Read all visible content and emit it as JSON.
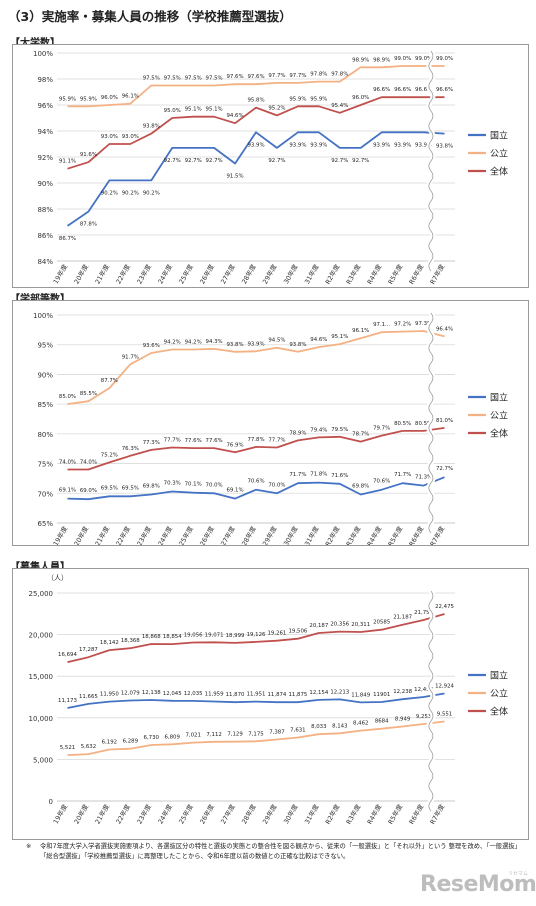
{
  "page": {
    "heading": "（3）実施率・募集人員の推移（学校推薦型選抜）",
    "footnote": "令和7年度大学入学者選抜実施要項より、各選抜区分の特性と選抜の実態との整合性を図る観点から、従来の「一般選抜」と「それ以外」という 整理を改め、「一般選抜」「総合型選抜」「学校推薦型選抜」に再整理したことから、令和6年度以前の数値との正確な比較はできない。",
    "footnote_mark": "※",
    "logo": "ReseMom",
    "logo_sub": "リセマム"
  },
  "colors": {
    "national": "#4472c4",
    "public": "#f4b183",
    "total": "#c0504d"
  },
  "chart_data": [
    {
      "type": "line",
      "section_label": "【大学数】",
      "categories": [
        "19年度",
        "20年度",
        "21年度",
        "22年度",
        "23年度",
        "24年度",
        "25年度",
        "26年度",
        "27年度",
        "28年度",
        "29年度",
        "30年度",
        "31年度",
        "R2年度",
        "R3年度",
        "R4年度",
        "R5年度",
        "R6年度",
        "R7年度"
      ],
      "ylim": [
        84,
        100
      ],
      "yticks": [
        84,
        86,
        88,
        90,
        92,
        94,
        96,
        98,
        100
      ],
      "ytick_labels": [
        "84%",
        "86%",
        "88%",
        "90%",
        "92%",
        "94%",
        "96%",
        "98%",
        "100%"
      ],
      "series": [
        {
          "name": "国立",
          "color_key": "national",
          "values": [
            86.7,
            87.8,
            90.2,
            90.2,
            90.2,
            92.7,
            92.7,
            92.7,
            91.5,
            93.9,
            92.7,
            93.9,
            93.9,
            92.7,
            92.7,
            93.9,
            93.9,
            93.9,
            93.8
          ],
          "labels": [
            "86.7%",
            "87.8%",
            "90.2%",
            "90.2%",
            "90.2%",
            "92.7%",
            "92.7%",
            "92.7%",
            "91.5%",
            "93.9%",
            "92.7%",
            "93.9%",
            "93.9%",
            "92.7%",
            "92.7%",
            "93.9%",
            "93.9%",
            "93.9%",
            "93.8%"
          ]
        },
        {
          "name": "公立",
          "color_key": "public",
          "values": [
            95.9,
            95.9,
            96.0,
            96.1,
            97.5,
            97.5,
            97.5,
            97.5,
            97.6,
            97.6,
            97.7,
            97.7,
            97.8,
            97.8,
            98.9,
            98.9,
            99.0,
            99.0,
            99.0
          ],
          "labels": [
            "95.9%",
            "95.9%",
            "96.0%",
            "96.1%",
            "97.5%",
            "97.5%",
            "97.5%",
            "97.5%",
            "97.6%",
            "97.6%",
            "97.7%",
            "97.7%",
            "97.8%",
            "97.8%",
            "98.9%",
            "98.9%",
            "99.0%",
            "99.0%",
            "99.0%"
          ]
        },
        {
          "name": "全体",
          "color_key": "total",
          "values": [
            91.1,
            91.6,
            93.0,
            93.0,
            93.8,
            95.0,
            95.1,
            95.1,
            94.6,
            95.8,
            95.2,
            95.9,
            95.9,
            95.4,
            96.0,
            96.6,
            96.6,
            96.6,
            96.6
          ],
          "labels": [
            "91.1%",
            "91.6%",
            "93.0%",
            "93.0%",
            "93.8%",
            "95.0%",
            "95.1%",
            "95.1%",
            "94.6%",
            "95.8%",
            "95.2%",
            "95.9%",
            "95.9%",
            "95.4%",
            "96.0%",
            "96.6%",
            "96.6%",
            "96.6%",
            "96.6%"
          ]
        }
      ]
    },
    {
      "type": "line",
      "section_label": "【学部等数】",
      "categories": [
        "19年度",
        "20年度",
        "21年度",
        "22年度",
        "23年度",
        "24年度",
        "25年度",
        "26年度",
        "27年度",
        "28年度",
        "29年度",
        "30年度",
        "31年度",
        "R2年度",
        "R3年度",
        "R4年度",
        "R5年度",
        "R6年度",
        "R7年度"
      ],
      "ylim": [
        65,
        100
      ],
      "yticks": [
        65,
        70,
        75,
        80,
        85,
        90,
        95,
        100
      ],
      "ytick_labels": [
        "65%",
        "70%",
        "75%",
        "80%",
        "85%",
        "90%",
        "95%",
        "100%"
      ],
      "series": [
        {
          "name": "国立",
          "color_key": "national",
          "values": [
            69.1,
            69.0,
            69.5,
            69.5,
            69.8,
            70.3,
            70.1,
            70.0,
            69.1,
            70.6,
            70.0,
            71.7,
            71.8,
            71.6,
            69.8,
            70.6,
            71.7,
            71.3,
            72.7
          ],
          "labels": [
            "69.1%",
            "69.0%",
            "69.5%",
            "69.5%",
            "69.8%",
            "70.3%",
            "70.1%",
            "70.0%",
            "69.1%",
            "70.6%",
            "70.0%",
            "71.7%",
            "71.8%",
            "71.6%",
            "69.8%",
            "70.6%",
            "71.7%",
            "71.3%",
            "72.7%"
          ]
        },
        {
          "name": "公立",
          "color_key": "public",
          "values": [
            85.0,
            85.5,
            87.7,
            91.7,
            93.6,
            94.2,
            94.2,
            94.3,
            93.8,
            93.9,
            94.5,
            93.8,
            94.6,
            95.1,
            96.1,
            97.1,
            97.2,
            97.3,
            96.4
          ],
          "labels": [
            "85.0%",
            "85.5%",
            "87.7%",
            "91.7%",
            "93.6%",
            "94.2%",
            "94.2%",
            "94.3%",
            "93.8%",
            "93.9%",
            "94.5%",
            "93.8%",
            "94.6%",
            "95.1%",
            "96.1%",
            "97.1...",
            "97.2%",
            "97.3%",
            "96.4%"
          ]
        },
        {
          "name": "全体",
          "color_key": "total",
          "values": [
            74.0,
            74.0,
            75.2,
            76.3,
            77.3,
            77.7,
            77.6,
            77.6,
            76.9,
            77.8,
            77.7,
            78.9,
            79.4,
            79.5,
            78.7,
            79.7,
            80.5,
            80.5,
            81.0
          ],
          "labels": [
            "74.0%",
            "74.0%",
            "75.2%",
            "76.3%",
            "77.3%",
            "77.7%",
            "77.6%",
            "77.6%",
            "76.9%",
            "77.8%",
            "77.7%",
            "78.9%",
            "79.4%",
            "79.5%",
            "78.7%",
            "79.7%",
            "80.5%",
            "80.5%",
            "81.0%"
          ]
        }
      ]
    },
    {
      "type": "line",
      "section_label": "【募集人員】",
      "unit_label": "（人）",
      "categories": [
        "19年度",
        "20年度",
        "21年度",
        "22年度",
        "23年度",
        "24年度",
        "25年度",
        "26年度",
        "27年度",
        "28年度",
        "29年度",
        "30年度",
        "31年度",
        "R2年度",
        "R3年度",
        "R4年度",
        "R5年度",
        "R6年度",
        "R7年度"
      ],
      "ylim": [
        0,
        25000
      ],
      "yticks": [
        0,
        5000,
        10000,
        15000,
        20000,
        25000
      ],
      "ytick_labels": [
        "0",
        "5,000",
        "10,000",
        "15,000",
        "20,000",
        "25,000"
      ],
      "series": [
        {
          "name": "国立",
          "color_key": "national",
          "values": [
            11173,
            11665,
            11950,
            12079,
            12138,
            12045,
            12035,
            11959,
            11870,
            11951,
            11874,
            11875,
            12154,
            12213,
            11849,
            11901,
            12238,
            12498,
            12924
          ],
          "labels": [
            "11,173",
            "11,665",
            "11,950",
            "12,079",
            "12,138",
            "12,045",
            "12,035",
            "11,959",
            "11,870",
            "11,951",
            "11,874",
            "11,875",
            "12,154",
            "12,213",
            "11,849",
            "11901",
            "12,238",
            "12,498",
            "12,924"
          ]
        },
        {
          "name": "公立",
          "color_key": "public",
          "values": [
            5521,
            5632,
            6192,
            6289,
            6730,
            6809,
            7021,
            7112,
            7129,
            7175,
            7387,
            7631,
            8033,
            8143,
            8462,
            8684,
            8949,
            9253,
            9551
          ],
          "labels": [
            "5,521",
            "5,632",
            "6,192",
            "6,289",
            "6,730",
            "6,809",
            "7,021",
            "7,112",
            "7,129",
            "7,175",
            "7,387",
            "7,631",
            "8,033",
            "8,143",
            "8,462",
            "8684",
            "8,949",
            "9,253",
            "9,551"
          ]
        },
        {
          "name": "全体",
          "color_key": "total",
          "values": [
            16694,
            17287,
            18142,
            18368,
            18868,
            18854,
            19056,
            19071,
            18999,
            19126,
            19261,
            19506,
            20187,
            20356,
            20311,
            20585,
            21187,
            21751,
            22475
          ],
          "labels": [
            "16,694",
            "17,287",
            "18,142",
            "18,368",
            "18,868",
            "18,854",
            "19,056",
            "19,071",
            "18,999",
            "19,126",
            "19,261",
            "19,506",
            "20,187",
            "20,356",
            "20,311",
            "20585",
            "21,187",
            "21,751",
            "22,475"
          ]
        }
      ]
    }
  ]
}
